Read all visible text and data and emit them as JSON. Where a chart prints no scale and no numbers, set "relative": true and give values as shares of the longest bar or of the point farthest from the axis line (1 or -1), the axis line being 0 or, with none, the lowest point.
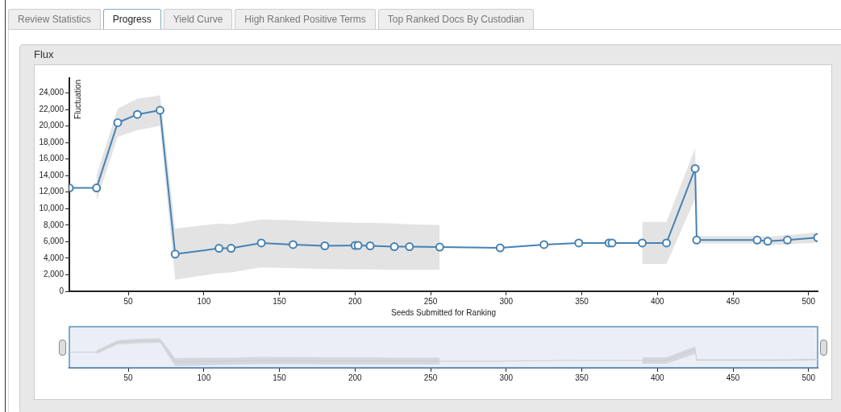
{
  "chart_data": [
    {
      "type": "line",
      "title": "Flux",
      "xlabel": "Seeds Submitted for Ranking",
      "ylabel": "Fluctuation",
      "annotations": [
        "Review Statistics",
        "Progress",
        "Yield Curve",
        "High Ranked Positive Terms",
        "Top Ranked Docs By Custodian"
      ],
      "x": [
        11,
        29,
        43,
        56,
        71,
        81,
        110,
        118,
        138,
        159,
        180,
        200,
        202,
        210,
        226,
        236,
        256,
        296,
        325,
        348,
        368,
        370,
        390,
        406,
        425,
        426,
        466,
        473,
        486,
        506
      ],
      "series": [
        {
          "color": "#4682b4",
          "values": [
            12500,
            12500,
            20400,
            21400,
            21900,
            4500,
            5200,
            5200,
            5850,
            5650,
            5500,
            5550,
            5550,
            5500,
            5400,
            5400,
            5350,
            5250,
            5650,
            5850,
            5850,
            5850,
            5850,
            5850,
            14850,
            6200,
            6200,
            6050,
            6200,
            6500
          ],
          "lower": [
            null,
            10900,
            18700,
            19500,
            20000,
            1400,
            2200,
            2300,
            2900,
            2800,
            2700,
            2650,
            2650,
            2650,
            2600,
            2600,
            2600,
            null,
            null,
            null,
            null,
            null,
            3300,
            3300,
            11200,
            5800,
            5800,
            5600,
            5700,
            5900
          ],
          "upper": [
            null,
            14100,
            22100,
            23300,
            23700,
            7600,
            8200,
            8100,
            8700,
            8600,
            8400,
            8300,
            8300,
            8300,
            8200,
            8100,
            8000,
            null,
            null,
            null,
            null,
            null,
            8400,
            8400,
            17300,
            6700,
            6700,
            6600,
            6800,
            7100
          ]
        }
      ],
      "xlim": [
        11,
        506
      ],
      "xticks": [
        50,
        100,
        150,
        200,
        250,
        300,
        350,
        400,
        450,
        500
      ],
      "ylim": [
        0,
        25800
      ],
      "yticks": [
        0,
        {
          "value": 2000,
          "label": "2,000"
        },
        {
          "value": 4000,
          "label": "4,000"
        },
        {
          "value": 6000,
          "label": "6,000"
        },
        {
          "value": 8000,
          "label": "8,000"
        },
        {
          "value": 10000,
          "label": "10,000"
        },
        {
          "value": 12000,
          "label": "12,000"
        },
        {
          "value": 14000,
          "label": "14,000"
        },
        {
          "value": 16000,
          "label": "16,000"
        },
        {
          "value": 18000,
          "label": "18,000"
        },
        {
          "value": 20000,
          "label": "20,000"
        },
        {
          "value": 22000,
          "label": "22,000"
        },
        {
          "value": 24000,
          "label": "24,000"
        }
      ],
      "marker": "circle"
    },
    {
      "type": "line",
      "relative": true,
      "x": [
        11,
        29,
        43,
        56,
        71,
        81,
        110,
        118,
        138,
        159,
        180,
        200,
        202,
        210,
        226,
        236,
        256,
        296,
        325,
        348,
        368,
        370,
        390,
        406,
        425,
        426,
        466,
        473,
        486,
        506
      ],
      "series": [
        {
          "color": "#cccccc",
          "values": [
            0.57,
            0.57,
            0.93,
            0.98,
            1,
            0.21,
            0.24,
            0.24,
            0.27,
            0.26,
            0.25,
            0.25,
            0.25,
            0.25,
            0.25,
            0.25,
            0.24,
            0.24,
            0.26,
            0.27,
            0.27,
            0.27,
            0.27,
            0.27,
            0.68,
            0.28,
            0.28,
            0.28,
            0.28,
            0.3
          ],
          "lower": [
            null,
            0.5,
            0.85,
            0.89,
            0.91,
            0.06,
            0.1,
            0.11,
            0.13,
            0.13,
            0.12,
            0.12,
            0.12,
            0.12,
            0.12,
            0.12,
            0.12,
            null,
            null,
            null,
            null,
            null,
            0.15,
            0.15,
            0.51,
            0.26,
            0.26,
            0.26,
            0.26,
            0.27
          ],
          "upper": [
            null,
            0.64,
            1.01,
            1.06,
            1.08,
            0.35,
            0.37,
            0.37,
            0.4,
            0.39,
            0.38,
            0.38,
            0.38,
            0.38,
            0.37,
            0.37,
            0.37,
            null,
            null,
            null,
            null,
            null,
            0.38,
            0.38,
            0.79,
            0.31,
            0.31,
            0.3,
            0.31,
            0.32
          ]
        }
      ],
      "xlim": [
        11,
        506
      ],
      "xticks": [
        50,
        100,
        150,
        200,
        250,
        300,
        350,
        400,
        450,
        500
      ],
      "bands": [
        {
          "axis": "x",
          "from": 11,
          "to": 506,
          "color": "#eaeff7"
        }
      ],
      "marker": "none"
    }
  ]
}
